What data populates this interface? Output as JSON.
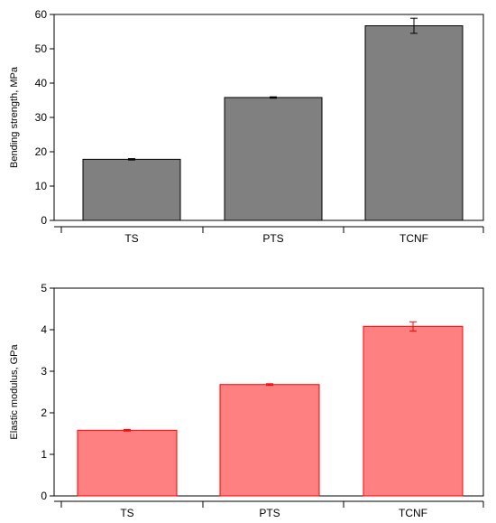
{
  "chart_data": [
    {
      "type": "bar",
      "categories": [
        "TS",
        "PTS",
        "TCNF"
      ],
      "values": [
        17.8,
        35.8,
        56.7
      ],
      "errors": [
        0.2,
        0.2,
        2.2
      ],
      "ylabel": "Bending strength, MPa",
      "ylim": [
        0,
        60
      ],
      "yticks": [
        "0",
        "10",
        "20",
        "30",
        "40",
        "50",
        "60"
      ],
      "bar_fill": "#808080",
      "bar_stroke": "#000000",
      "error_color": "#000000",
      "grid": false
    },
    {
      "type": "bar",
      "categories": [
        "TS",
        "PTS",
        "TCNF"
      ],
      "values": [
        1.58,
        2.68,
        4.08
      ],
      "errors": [
        0.02,
        0.02,
        0.11
      ],
      "ylabel": "Elastic modulus, GPa",
      "ylim": [
        0,
        5
      ],
      "yticks": [
        "0",
        "1",
        "2",
        "3",
        "4",
        "5"
      ],
      "bar_fill": "#ff8080",
      "bar_stroke": "#ff0000",
      "error_color": "#ff0000",
      "grid": false
    }
  ]
}
